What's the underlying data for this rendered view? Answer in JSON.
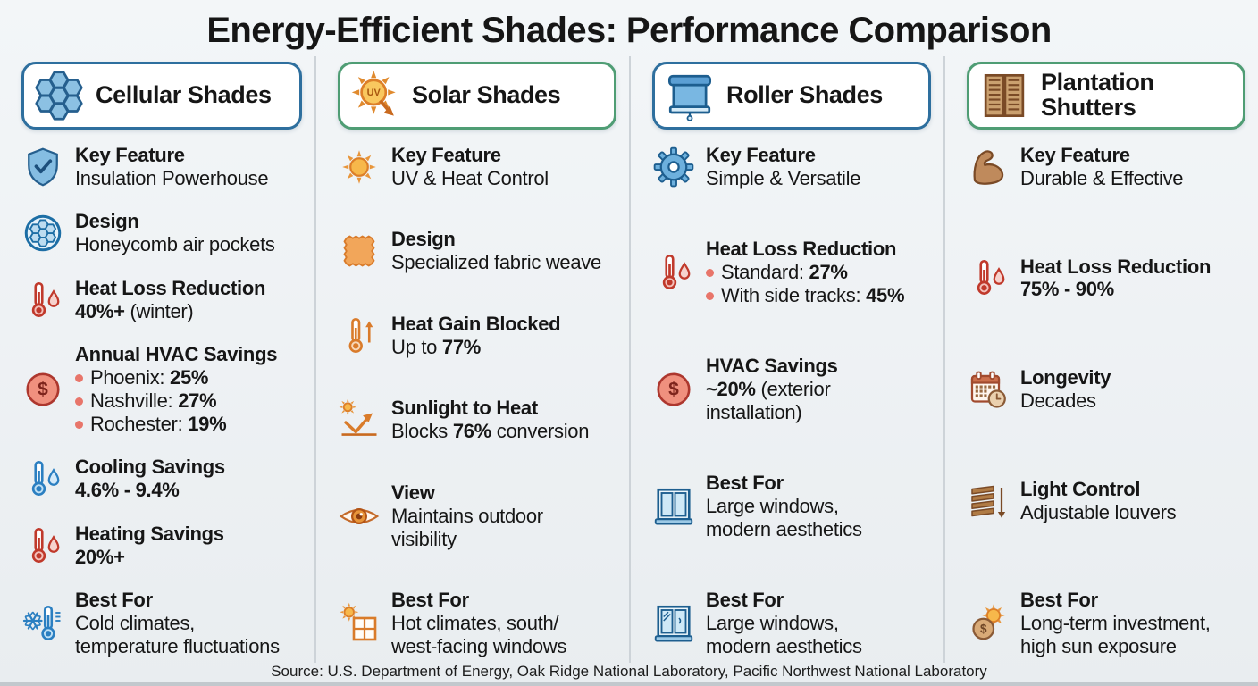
{
  "title": "Energy-Efficient Shades: Performance Comparison",
  "footer": {
    "source": "Source: U.S. Department of Energy, Oak Ridge National Laboratory, Pacific Northwest National Laboratory"
  },
  "colors": {
    "blue_accent": "#2e6f9e",
    "green_accent": "#4f9d74",
    "bullet": "#e8756a",
    "background": "#eef1f4"
  },
  "columns": [
    {
      "name": "Cellular Shades",
      "header_icon": "honeycomb-icon",
      "accent": "#2e6f9e",
      "rows": [
        {
          "icon": "shield-check-icon",
          "label": "Key Feature",
          "lines": [
            {
              "segments": [
                {
                  "t": "Insulation Powerhouse"
                }
              ]
            }
          ]
        },
        {
          "icon": "honeycomb-circle-icon",
          "label": "Design",
          "lines": [
            {
              "segments": [
                {
                  "t": "Honeycomb air pockets"
                }
              ]
            }
          ]
        },
        {
          "icon": "thermometer-droplet-red-icon",
          "label": "Heat Loss Reduction",
          "lines": [
            {
              "segments": [
                {
                  "t": "40%+",
                  "b": true
                },
                {
                  "t": " (winter)"
                }
              ]
            }
          ]
        },
        {
          "icon": "dollar-circle-icon",
          "label": "Annual HVAC Savings",
          "lines": [
            {
              "bullet": true,
              "segments": [
                {
                  "t": "Phoenix: "
                },
                {
                  "t": "25%",
                  "b": true
                }
              ]
            },
            {
              "bullet": true,
              "segments": [
                {
                  "t": "Nashville: "
                },
                {
                  "t": "27%",
                  "b": true
                }
              ]
            },
            {
              "bullet": true,
              "segments": [
                {
                  "t": "Rochester: "
                },
                {
                  "t": "19%",
                  "b": true
                }
              ]
            }
          ]
        },
        {
          "icon": "thermometer-droplet-blue-icon",
          "label": "Cooling Savings",
          "lines": [
            {
              "segments": [
                {
                  "t": "4.6% - 9.4%",
                  "b": true
                }
              ]
            }
          ]
        },
        {
          "icon": "thermometer-droplet-red-icon",
          "label": "Heating Savings",
          "lines": [
            {
              "segments": [
                {
                  "t": "20%+",
                  "b": true
                }
              ]
            }
          ]
        },
        {
          "icon": "snowflake-thermometer-icon",
          "label": "Best For",
          "lines": [
            {
              "segments": [
                {
                  "t": "Cold climates,"
                }
              ]
            },
            {
              "segments": [
                {
                  "t": "temperature fluctuations"
                }
              ]
            }
          ]
        }
      ]
    },
    {
      "name": "Solar Shades",
      "header_icon": "sun-uv-icon",
      "accent": "#4f9d74",
      "rows": [
        {
          "icon": "sun-icon",
          "label": "Key Feature",
          "lines": [
            {
              "segments": [
                {
                  "t": "UV & Heat Control"
                }
              ]
            }
          ]
        },
        {
          "icon": "fabric-swatch-icon",
          "label": "Design",
          "lines": [
            {
              "segments": [
                {
                  "t": "Specialized fabric weave"
                }
              ]
            }
          ]
        },
        {
          "icon": "thermometer-up-icon",
          "label": "Heat Gain Blocked",
          "lines": [
            {
              "segments": [
                {
                  "t": "Up to "
                },
                {
                  "t": "77%",
                  "b": true
                }
              ]
            }
          ]
        },
        {
          "icon": "sun-bounce-icon",
          "label": "Sunlight to Heat",
          "lines": [
            {
              "segments": [
                {
                  "t": "Blocks "
                },
                {
                  "t": "76%",
                  "b": true
                },
                {
                  "t": " conversion"
                }
              ]
            }
          ]
        },
        {
          "icon": "eye-icon",
          "label": "View",
          "lines": [
            {
              "segments": [
                {
                  "t": "Maintains outdoor"
                }
              ]
            },
            {
              "segments": [
                {
                  "t": "visibility"
                }
              ]
            }
          ]
        },
        {
          "icon": "sun-window-icon",
          "label": "Best For",
          "lines": [
            {
              "segments": [
                {
                  "t": "Hot climates, south/"
                }
              ]
            },
            {
              "segments": [
                {
                  "t": "west-facing windows"
                }
              ]
            }
          ]
        }
      ]
    },
    {
      "name": "Roller Shades",
      "header_icon": "roller-shade-icon",
      "accent": "#2e6f9e",
      "rows": [
        {
          "icon": "gear-icon",
          "label": "Key Feature",
          "lines": [
            {
              "segments": [
                {
                  "t": "Simple & Versatile"
                }
              ]
            }
          ]
        },
        {
          "icon": "thermometer-droplet-red-icon",
          "label": "Heat Loss Reduction",
          "lines": [
            {
              "bullet": true,
              "segments": [
                {
                  "t": "Standard: "
                },
                {
                  "t": "27%",
                  "b": true
                }
              ]
            },
            {
              "bullet": true,
              "segments": [
                {
                  "t": "With side tracks: "
                },
                {
                  "t": "45%",
                  "b": true
                }
              ]
            }
          ]
        },
        {
          "icon": "dollar-circle-icon",
          "label": "HVAC Savings",
          "lines": [
            {
              "segments": [
                {
                  "t": "~20%",
                  "b": true
                },
                {
                  "t": " (exterior"
                }
              ]
            },
            {
              "segments": [
                {
                  "t": "installation)"
                }
              ]
            }
          ]
        },
        {
          "icon": "window-icon",
          "label": "Best For",
          "lines": [
            {
              "segments": [
                {
                  "t": "Large windows,"
                }
              ]
            },
            {
              "segments": [
                {
                  "t": "modern aesthetics"
                }
              ]
            }
          ]
        },
        {
          "icon": "window-glare-icon",
          "label": "Best For",
          "lines": [
            {
              "segments": [
                {
                  "t": "Large windows,"
                }
              ]
            },
            {
              "segments": [
                {
                  "t": "modern aesthetics"
                }
              ]
            }
          ]
        }
      ]
    },
    {
      "name": "Plantation Shutters",
      "header_icon": "shutters-icon",
      "accent": "#4f9d74",
      "rows": [
        {
          "icon": "bicep-icon",
          "label": "Key Feature",
          "lines": [
            {
              "segments": [
                {
                  "t": "Durable & Effective"
                }
              ]
            }
          ]
        },
        {
          "icon": "thermometer-droplet-red-icon",
          "label": "Heat Loss Reduction",
          "lines": [
            {
              "segments": [
                {
                  "t": "75% - 90%",
                  "b": true
                }
              ]
            }
          ]
        },
        {
          "icon": "calendar-clock-icon",
          "label": "Longevity",
          "lines": [
            {
              "segments": [
                {
                  "t": "Decades"
                }
              ]
            }
          ]
        },
        {
          "icon": "louvers-icon",
          "label": "Light Control",
          "lines": [
            {
              "segments": [
                {
                  "t": "Adjustable louvers"
                }
              ]
            }
          ]
        },
        {
          "icon": "coin-sun-icon",
          "label": "Best For",
          "lines": [
            {
              "segments": [
                {
                  "t": "Long-term investment,"
                }
              ]
            },
            {
              "segments": [
                {
                  "t": "high sun exposure"
                }
              ]
            }
          ]
        }
      ]
    }
  ]
}
